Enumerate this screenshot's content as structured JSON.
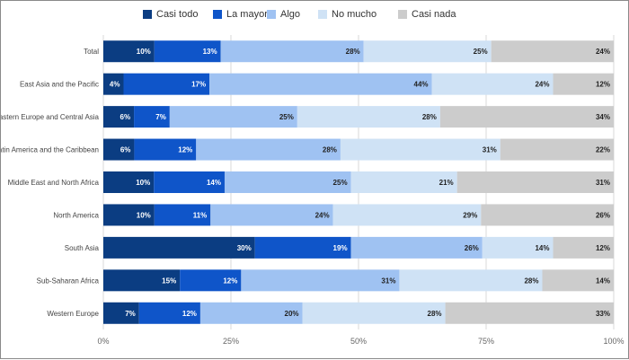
{
  "chart_data": {
    "type": "bar",
    "orientation": "horizontal",
    "stacked": "percent",
    "title": "",
    "xlabel": "",
    "ylabel": "",
    "xlim": [
      0,
      100
    ],
    "x_ticks": [
      "0%",
      "25%",
      "50%",
      "75%",
      "100%"
    ],
    "grid": true,
    "legend_position": "top",
    "categories": [
      "Total",
      "East Asia and the Pacific",
      "Eastern Europe and Central Asia",
      "Latin America and the Caribbean",
      "Middle East and North Africa",
      "North America",
      "South Asia",
      "Sub-Saharan Africa",
      "Western Europe"
    ],
    "series": [
      {
        "name": "Casi todo",
        "color": "#0b3d82",
        "values": [
          10,
          4,
          6,
          6,
          10,
          10,
          30,
          15,
          7
        ]
      },
      {
        "name": "La mayoría",
        "color": "#0f55c9",
        "values": [
          13,
          17,
          7,
          12,
          14,
          11,
          19,
          12,
          12
        ]
      },
      {
        "name": "Algo",
        "color": "#9fc2f2",
        "values": [
          28,
          44,
          25,
          28,
          25,
          24,
          26,
          31,
          20
        ]
      },
      {
        "name": "No mucho",
        "color": "#cfe2f5",
        "values": [
          25,
          24,
          28,
          31,
          21,
          29,
          14,
          28,
          28
        ]
      },
      {
        "name": "Casi nada",
        "color": "#cccccc",
        "values": [
          24,
          12,
          34,
          22,
          31,
          26,
          12,
          14,
          33
        ]
      }
    ],
    "label_colors": [
      "#ffffff",
      "#ffffff",
      "#222222",
      "#222222",
      "#222222"
    ]
  }
}
